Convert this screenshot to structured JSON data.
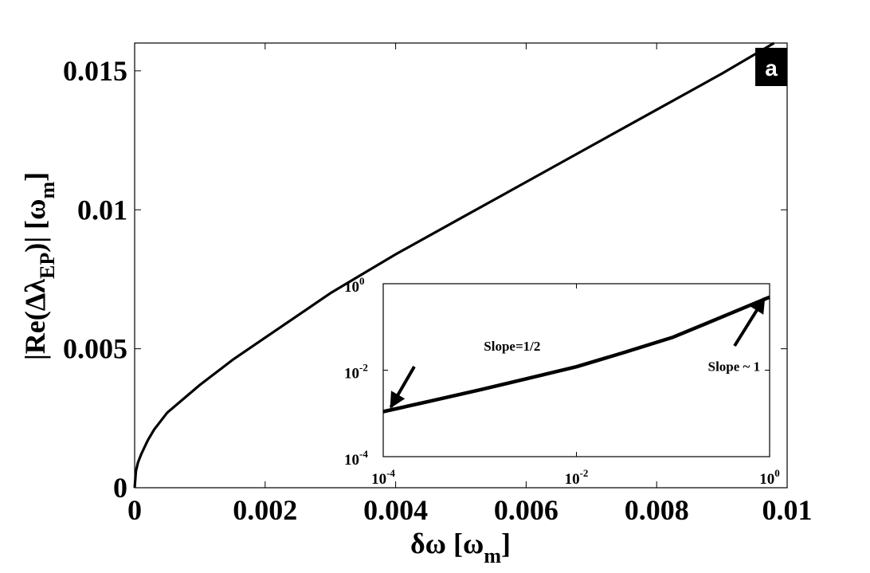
{
  "chart_data": [
    {
      "type": "line",
      "panel_label": "a",
      "xlabel": {
        "main": "δω [ω",
        "sub": "m",
        "close": "]"
      },
      "ylabel": {
        "pre": "|Re(Δλ",
        "sub": "EP",
        "post": ")| [ω",
        "sub2": "m",
        "close": "]"
      },
      "xlim": [
        0,
        0.01
      ],
      "ylim": [
        0,
        0.016
      ],
      "xticks": [
        0,
        0.002,
        0.004,
        0.006,
        0.008,
        0.01
      ],
      "xtick_labels": [
        "0",
        "0.002",
        "0.004",
        "0.006",
        "0.008",
        "0.01"
      ],
      "yticks": [
        0,
        0.005,
        0.01,
        0.015
      ],
      "ytick_labels": [
        "0",
        "0.005",
        "0.01",
        "0.015"
      ],
      "grid": false,
      "series": [
        {
          "x": [
            0,
            2e-05,
            5e-05,
            0.0001,
            0.0002,
            0.0003,
            0.0005,
            0.0007,
            0.001,
            0.0015,
            0.002,
            0.0025,
            0.003,
            0.0035,
            0.004,
            0.005,
            0.006,
            0.007,
            0.008,
            0.009,
            0.0098
          ],
          "y": [
            0,
            0.0006,
            0.0009,
            0.0012,
            0.0017,
            0.0021,
            0.0027,
            0.0031,
            0.0037,
            0.0046,
            0.0054,
            0.0062,
            0.007,
            0.0077,
            0.0084,
            0.0097,
            0.011,
            0.0123,
            0.0136,
            0.0149,
            0.016
          ]
        }
      ]
    },
    {
      "type": "line",
      "scale": "log-log",
      "xlim": [
        0.0001,
        1
      ],
      "ylim": [
        0.0001,
        1
      ],
      "xticks": [
        0.0001,
        0.01,
        1
      ],
      "xtick_labels": [
        {
          "base": "10",
          "exp": "-4"
        },
        {
          "base": "10",
          "exp": "-2"
        },
        {
          "base": "10",
          "exp": "0"
        }
      ],
      "yticks": [
        0.0001,
        0.01,
        1
      ],
      "ytick_labels": [
        {
          "base": "10",
          "exp": "-4"
        },
        {
          "base": "10",
          "exp": "-2"
        },
        {
          "base": "10",
          "exp": "0"
        }
      ],
      "grid": false,
      "series": [
        {
          "x": [
            0.0001,
            0.0003,
            0.001,
            0.003,
            0.01,
            0.03,
            0.1,
            0.3,
            1
          ],
          "y": [
            0.0011,
            0.0019,
            0.0035,
            0.0063,
            0.012,
            0.025,
            0.058,
            0.16,
            0.49
          ]
        }
      ],
      "annotations": [
        {
          "text": "Slope=1/2",
          "x": 0.0011,
          "y": 0.028,
          "arrow_to": [
            0.00012,
            0.0014
          ]
        },
        {
          "text": "Slope ~ 1",
          "x": 0.23,
          "y": 0.0095,
          "arrow_to": [
            0.88,
            0.46
          ]
        }
      ]
    }
  ]
}
